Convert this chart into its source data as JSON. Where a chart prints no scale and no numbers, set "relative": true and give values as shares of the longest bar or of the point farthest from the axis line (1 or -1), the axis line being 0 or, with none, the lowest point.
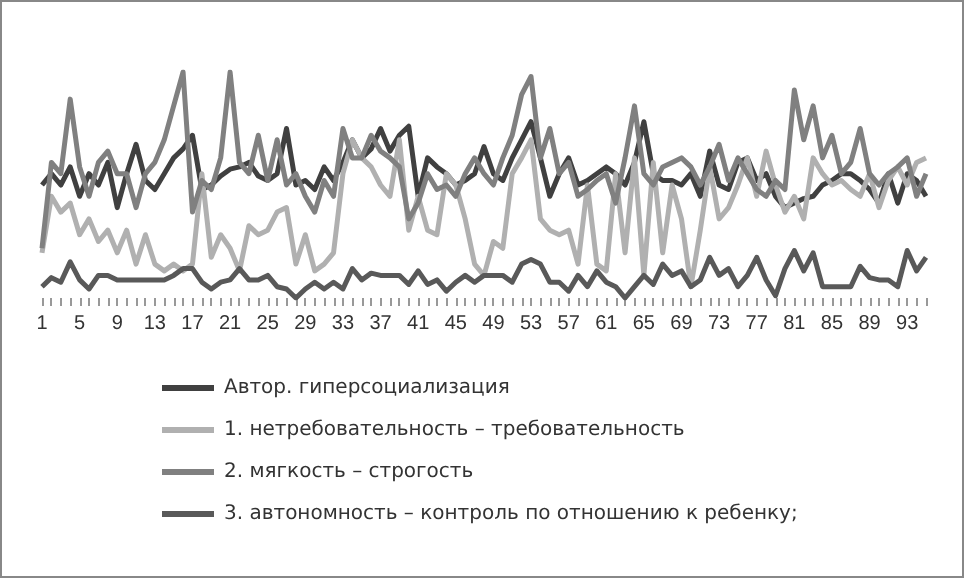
{
  "chart_data": {
    "type": "line",
    "relative": true,
    "grid": false,
    "legend": "bottom",
    "marker": "none",
    "line_style": "solid",
    "categories": [
      "1",
      null,
      null,
      null,
      "5",
      null,
      null,
      null,
      "9",
      null,
      null,
      null,
      "13",
      null,
      null,
      null,
      "17",
      null,
      null,
      null,
      "21",
      null,
      null,
      null,
      "25",
      null,
      null,
      null,
      "29",
      null,
      null,
      null,
      "33",
      null,
      null,
      null,
      "37",
      null,
      null,
      null,
      "41",
      null,
      null,
      null,
      "45",
      null,
      null,
      null,
      "49",
      null,
      null,
      null,
      "53",
      null,
      null,
      null,
      "57",
      null,
      null,
      null,
      "61",
      null,
      null,
      null,
      "65",
      null,
      null,
      null,
      "69",
      null,
      null,
      null,
      "73",
      null,
      null,
      null,
      "77",
      null,
      null,
      null,
      "81",
      null,
      null,
      null,
      "85",
      null,
      null,
      null,
      "89",
      null,
      null,
      null,
      "93",
      null,
      null
    ],
    "series": [
      {
        "name": "Автор. гиперсоциализация",
        "color": "#404040",
        "values": [
          0.5,
          0.55,
          0.5,
          0.58,
          0.45,
          0.55,
          0.5,
          0.6,
          0.4,
          0.55,
          0.68,
          0.52,
          0.48,
          0.55,
          0.62,
          0.66,
          0.72,
          0.48,
          0.5,
          0.54,
          0.57,
          0.58,
          0.6,
          0.54,
          0.52,
          0.55,
          0.75,
          0.5,
          0.52,
          0.48,
          0.58,
          0.52,
          0.6,
          0.7,
          0.62,
          0.66,
          0.75,
          0.65,
          0.72,
          0.76,
          0.45,
          0.62,
          0.58,
          0.55,
          0.5,
          0.52,
          0.55,
          0.67,
          0.55,
          0.52,
          0.62,
          0.7,
          0.78,
          0.62,
          0.45,
          0.55,
          0.62,
          0.5,
          0.52,
          0.55,
          0.58,
          0.55,
          0.5,
          0.6,
          0.78,
          0.55,
          0.52,
          0.52,
          0.5,
          0.55,
          0.45,
          0.65,
          0.5,
          0.48,
          0.6,
          0.62,
          0.52,
          0.55,
          0.45,
          0.4,
          0.42,
          0.44,
          0.45,
          0.5,
          0.52,
          0.55,
          0.55,
          0.52,
          0.48,
          0.42,
          0.55,
          0.42,
          0.55,
          0.52,
          0.45
        ]
      },
      {
        "name": "1. нетребовательность – требовательность",
        "color": "#b0b0b0",
        "values": [
          0.2,
          0.45,
          0.38,
          0.42,
          0.28,
          0.35,
          0.25,
          0.3,
          0.2,
          0.3,
          0.15,
          0.28,
          0.15,
          0.12,
          0.15,
          0.12,
          0.15,
          0.55,
          0.18,
          0.28,
          0.22,
          0.12,
          0.32,
          0.28,
          0.3,
          0.38,
          0.4,
          0.15,
          0.28,
          0.12,
          0.15,
          0.2,
          0.55,
          0.7,
          0.62,
          0.58,
          0.5,
          0.45,
          0.7,
          0.3,
          0.45,
          0.3,
          0.28,
          0.55,
          0.5,
          0.35,
          0.15,
          0.1,
          0.25,
          0.22,
          0.55,
          0.62,
          0.7,
          0.35,
          0.3,
          0.28,
          0.3,
          0.15,
          0.5,
          0.15,
          0.12,
          0.55,
          0.2,
          0.62,
          0.1,
          0.6,
          0.2,
          0.5,
          0.35,
          0.05,
          0.3,
          0.58,
          0.35,
          0.4,
          0.5,
          0.62,
          0.45,
          0.65,
          0.5,
          0.38,
          0.45,
          0.35,
          0.62,
          0.55,
          0.5,
          0.52,
          0.48,
          0.45,
          0.55,
          0.4,
          0.52,
          0.58,
          0.5,
          0.6,
          0.62
        ]
      },
      {
        "name": "2. мягкость – строгость",
        "color": "#808080",
        "values": [
          0.22,
          0.6,
          0.55,
          0.88,
          0.58,
          0.45,
          0.6,
          0.65,
          0.55,
          0.55,
          0.4,
          0.55,
          0.6,
          0.7,
          0.85,
          1,
          0.38,
          0.52,
          0.48,
          0.62,
          1,
          0.6,
          0.55,
          0.72,
          0.52,
          0.7,
          0.5,
          0.55,
          0.45,
          0.38,
          0.52,
          0.45,
          0.75,
          0.62,
          0.62,
          0.72,
          0.65,
          0.62,
          0.58,
          0.35,
          0.42,
          0.55,
          0.48,
          0.5,
          0.45,
          0.55,
          0.62,
          0.55,
          0.5,
          0.62,
          0.72,
          0.9,
          0.98,
          0.62,
          0.75,
          0.55,
          0.6,
          0.45,
          0.48,
          0.52,
          0.55,
          0.42,
          0.62,
          0.85,
          0.55,
          0.5,
          0.58,
          0.6,
          0.62,
          0.58,
          0.5,
          0.58,
          0.68,
          0.52,
          0.62,
          0.55,
          0.48,
          0.45,
          0.52,
          0.48,
          0.92,
          0.7,
          0.85,
          0.62,
          0.72,
          0.55,
          0.6,
          0.75,
          0.55,
          0.5,
          0.55,
          0.58,
          0.62,
          0.45,
          0.55
        ]
      },
      {
        "name": "3. автономность – контроль по отношению к ребенку;",
        "color": "#595959",
        "values": [
          0.05,
          0.09,
          0.07,
          0.16,
          0.08,
          0.04,
          0.1,
          0.1,
          0.08,
          0.08,
          0.08,
          0.08,
          0.08,
          0.08,
          0.1,
          0.13,
          0.13,
          0.07,
          0.04,
          0.07,
          0.08,
          0.13,
          0.08,
          0.08,
          0.1,
          0.05,
          0.04,
          0,
          0.04,
          0.07,
          0.04,
          0.07,
          0.04,
          0.13,
          0.08,
          0.11,
          0.1,
          0.1,
          0.1,
          0.06,
          0.12,
          0.06,
          0.08,
          0.03,
          0.07,
          0.1,
          0.07,
          0.1,
          0.1,
          0.1,
          0.07,
          0.15,
          0.17,
          0.15,
          0.07,
          0.07,
          0.03,
          0.1,
          0.05,
          0.12,
          0.07,
          0.05,
          0,
          0.05,
          0.1,
          0.06,
          0.15,
          0.1,
          0.12,
          0.05,
          0.08,
          0.18,
          0.1,
          0.13,
          0.05,
          0.1,
          0.18,
          0.08,
          0.01,
          0.13,
          0.21,
          0.12,
          0.2,
          0.05,
          0.05,
          0.05,
          0.05,
          0.14,
          0.09,
          0.08,
          0.08,
          0.05,
          0.21,
          0.12,
          0.18
        ]
      }
    ]
  }
}
